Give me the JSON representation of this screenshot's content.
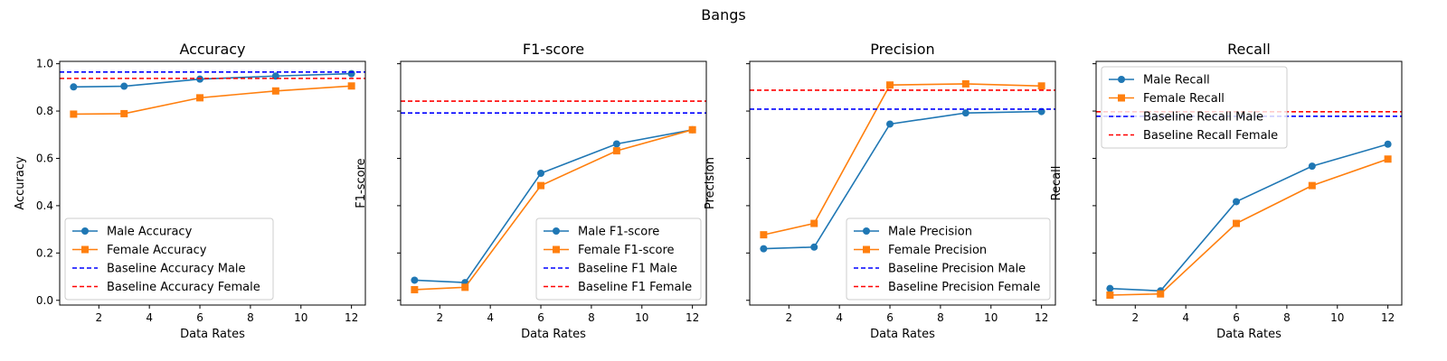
{
  "figure": {
    "title": "Bangs"
  },
  "chart_data": [
    {
      "type": "line",
      "title": "Accuracy",
      "xlabel": "Data Rates",
      "ylabel": "Accuracy",
      "xlim": [
        0.45,
        12.55
      ],
      "ylim": [
        -0.02,
        1.01
      ],
      "xticks": [
        2,
        4,
        6,
        8,
        10,
        12
      ],
      "yticks": [
        0.0,
        0.2,
        0.4,
        0.6,
        0.8,
        1.0
      ],
      "ytick_labels": [
        "0.0",
        "0.2",
        "0.4",
        "0.6",
        "0.8",
        "1.0"
      ],
      "x": [
        1,
        3,
        6,
        9,
        12
      ],
      "series": [
        {
          "name": "Male Accuracy",
          "color": "#1f77b4",
          "marker": "circle",
          "values": [
            0.902,
            0.905,
            0.935,
            0.948,
            0.958
          ]
        },
        {
          "name": "Female Accuracy",
          "color": "#ff7f0e",
          "marker": "square",
          "values": [
            0.787,
            0.789,
            0.856,
            0.885,
            0.906
          ]
        }
      ],
      "baselines": [
        {
          "name": "Baseline Accuracy Male",
          "color": "#0000ff",
          "value": 0.965
        },
        {
          "name": "Baseline Accuracy Female",
          "color": "#ff0000",
          "value": 0.938
        }
      ],
      "legend": "lower-left",
      "grid": false
    },
    {
      "type": "line",
      "title": "F1-score",
      "xlabel": "Data Rates",
      "ylabel": "F1-score",
      "xlim": [
        0.45,
        12.55
      ],
      "ylim": [
        -0.02,
        1.01
      ],
      "xticks": [
        2,
        4,
        6,
        8,
        10,
        12
      ],
      "yticks": [
        0.0,
        0.2,
        0.4,
        0.6,
        0.8,
        1.0
      ],
      "ytick_labels": [
        "",
        "",
        "",
        "",
        "",
        ""
      ],
      "x": [
        1,
        3,
        6,
        9,
        12
      ],
      "series": [
        {
          "name": "Male F1-score",
          "color": "#1f77b4",
          "marker": "circle",
          "values": [
            0.085,
            0.075,
            0.537,
            0.661,
            0.721
          ]
        },
        {
          "name": "Female F1-score",
          "color": "#ff7f0e",
          "marker": "square",
          "values": [
            0.045,
            0.055,
            0.485,
            0.632,
            0.721
          ]
        }
      ],
      "baselines": [
        {
          "name": "Baseline F1 Male",
          "color": "#0000ff",
          "value": 0.792
        },
        {
          "name": "Baseline F1 Female",
          "color": "#ff0000",
          "value": 0.842
        }
      ],
      "legend": "lower-right",
      "grid": false
    },
    {
      "type": "line",
      "title": "Precision",
      "xlabel": "Data Rates",
      "ylabel": "Precision",
      "xlim": [
        0.45,
        12.55
      ],
      "ylim": [
        -0.02,
        1.01
      ],
      "xticks": [
        2,
        4,
        6,
        8,
        10,
        12
      ],
      "yticks": [
        0.0,
        0.2,
        0.4,
        0.6,
        0.8,
        1.0
      ],
      "ytick_labels": [
        "",
        "",
        "",
        "",
        "",
        ""
      ],
      "x": [
        1,
        3,
        6,
        9,
        12
      ],
      "series": [
        {
          "name": "Male Precision",
          "color": "#1f77b4",
          "marker": "circle",
          "values": [
            0.218,
            0.225,
            0.745,
            0.792,
            0.798
          ]
        },
        {
          "name": "Female Precision",
          "color": "#ff7f0e",
          "marker": "square",
          "values": [
            0.277,
            0.325,
            0.91,
            0.915,
            0.906
          ]
        }
      ],
      "baselines": [
        {
          "name": "Baseline Precision Male",
          "color": "#0000ff",
          "value": 0.808
        },
        {
          "name": "Baseline Precision Female",
          "color": "#ff0000",
          "value": 0.888
        }
      ],
      "legend": "lower-right",
      "grid": false
    },
    {
      "type": "line",
      "title": "Recall",
      "xlabel": "Data Rates",
      "ylabel": "Recall",
      "xlim": [
        0.45,
        12.55
      ],
      "ylim": [
        -0.02,
        1.01
      ],
      "xticks": [
        2,
        4,
        6,
        8,
        10,
        12
      ],
      "yticks": [
        0.0,
        0.2,
        0.4,
        0.6,
        0.8,
        1.0
      ],
      "ytick_labels": [
        "",
        "",
        "",
        "",
        "",
        ""
      ],
      "x": [
        1,
        3,
        6,
        9,
        12
      ],
      "series": [
        {
          "name": "Male Recall",
          "color": "#1f77b4",
          "marker": "circle",
          "values": [
            0.05,
            0.04,
            0.417,
            0.567,
            0.66
          ]
        },
        {
          "name": "Female Recall",
          "color": "#ff7f0e",
          "marker": "square",
          "values": [
            0.022,
            0.027,
            0.325,
            0.485,
            0.597
          ]
        }
      ],
      "baselines": [
        {
          "name": "Baseline Recall Male",
          "color": "#0000ff",
          "value": 0.778
        },
        {
          "name": "Baseline Recall Female",
          "color": "#ff0000",
          "value": 0.797
        }
      ],
      "legend": "upper-left",
      "grid": false
    }
  ]
}
